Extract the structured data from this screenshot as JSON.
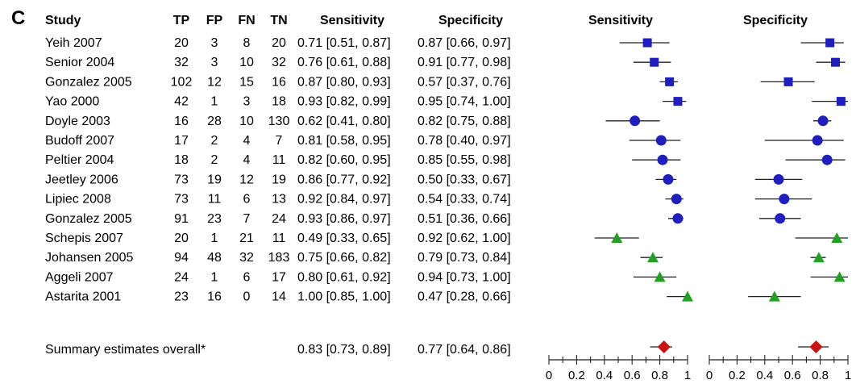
{
  "panel_label": "C",
  "headers": {
    "study": "Study",
    "tp": "TP",
    "fp": "FP",
    "fn": "FN",
    "tn": "TN",
    "sensitivity": "Sensitivity",
    "specificity": "Specificity",
    "plot_sensitivity": "Sensitivity",
    "plot_specificity": "Specificity"
  },
  "summary": {
    "label": "Summary estimates overall*",
    "sensitivity_text": "0.83 [0.73, 0.89]",
    "specificity_text": "0.77 [0.64, 0.86]",
    "sens": 0.83,
    "sens_lo": 0.73,
    "sens_hi": 0.89,
    "spec": 0.77,
    "spec_lo": 0.64,
    "spec_hi": 0.86,
    "marker": "diamond",
    "color": "#cc1111"
  },
  "marker_colors": {
    "square": "#1f1fbf",
    "circle": "#1f1fbf",
    "triangle": "#22a022"
  },
  "chart_data": {
    "type": "forest",
    "xlim": [
      0,
      1
    ],
    "ticks": [
      "0",
      "0.2",
      "0.4",
      "0.6",
      "0.8",
      "1"
    ],
    "tick_values": [
      0,
      0.2,
      0.4,
      0.6,
      0.8,
      1
    ],
    "studies": [
      {
        "study": "Yeih 2007",
        "tp": 20,
        "fp": 3,
        "fn": 8,
        "tn": 20,
        "sens": 0.71,
        "sens_lo": 0.51,
        "sens_hi": 0.87,
        "spec": 0.87,
        "spec_lo": 0.66,
        "spec_hi": 0.97,
        "sens_text": "0.71 [0.51, 0.87]",
        "spec_text": "0.87 [0.66, 0.97]",
        "marker": "square"
      },
      {
        "study": "Senior 2004",
        "tp": 32,
        "fp": 3,
        "fn": 10,
        "tn": 32,
        "sens": 0.76,
        "sens_lo": 0.61,
        "sens_hi": 0.88,
        "spec": 0.91,
        "spec_lo": 0.77,
        "spec_hi": 0.98,
        "sens_text": "0.76 [0.61, 0.88]",
        "spec_text": "0.91 [0.77, 0.98]",
        "marker": "square"
      },
      {
        "study": "Gonzalez 2005",
        "tp": 102,
        "fp": 12,
        "fn": 15,
        "tn": 16,
        "sens": 0.87,
        "sens_lo": 0.8,
        "sens_hi": 0.93,
        "spec": 0.57,
        "spec_lo": 0.37,
        "spec_hi": 0.76,
        "sens_text": "0.87 [0.80, 0.93]",
        "spec_text": "0.57 [0.37, 0.76]",
        "marker": "square"
      },
      {
        "study": "Yao 2000",
        "tp": 42,
        "fp": 1,
        "fn": 3,
        "tn": 18,
        "sens": 0.93,
        "sens_lo": 0.82,
        "sens_hi": 0.99,
        "spec": 0.95,
        "spec_lo": 0.74,
        "spec_hi": 1.0,
        "sens_text": "0.93 [0.82, 0.99]",
        "spec_text": "0.95 [0.74, 1.00]",
        "marker": "square"
      },
      {
        "study": "Doyle 2003",
        "tp": 16,
        "fp": 28,
        "fn": 10,
        "tn": 130,
        "sens": 0.62,
        "sens_lo": 0.41,
        "sens_hi": 0.8,
        "spec": 0.82,
        "spec_lo": 0.75,
        "spec_hi": 0.88,
        "sens_text": "0.62 [0.41, 0.80]",
        "spec_text": "0.82 [0.75, 0.88]",
        "marker": "circle"
      },
      {
        "study": "Budoff 2007",
        "tp": 17,
        "fp": 2,
        "fn": 4,
        "tn": 7,
        "sens": 0.81,
        "sens_lo": 0.58,
        "sens_hi": 0.95,
        "spec": 0.78,
        "spec_lo": 0.4,
        "spec_hi": 0.97,
        "sens_text": "0.81 [0.58, 0.95]",
        "spec_text": "0.78 [0.40, 0.97]",
        "marker": "circle"
      },
      {
        "study": "Peltier 2004",
        "tp": 18,
        "fp": 2,
        "fn": 4,
        "tn": 11,
        "sens": 0.82,
        "sens_lo": 0.6,
        "sens_hi": 0.95,
        "spec": 0.85,
        "spec_lo": 0.55,
        "spec_hi": 0.98,
        "sens_text": "0.82 [0.60, 0.95]",
        "spec_text": "0.85 [0.55, 0.98]",
        "marker": "circle"
      },
      {
        "study": "Jeetley 2006",
        "tp": 73,
        "fp": 19,
        "fn": 12,
        "tn": 19,
        "sens": 0.86,
        "sens_lo": 0.77,
        "sens_hi": 0.92,
        "spec": 0.5,
        "spec_lo": 0.33,
        "spec_hi": 0.67,
        "sens_text": "0.86 [0.77, 0.92]",
        "spec_text": "0.50 [0.33, 0.67]",
        "marker": "circle"
      },
      {
        "study": "Lipiec 2008",
        "tp": 73,
        "fp": 11,
        "fn": 6,
        "tn": 13,
        "sens": 0.92,
        "sens_lo": 0.84,
        "sens_hi": 0.97,
        "spec": 0.54,
        "spec_lo": 0.33,
        "spec_hi": 0.74,
        "sens_text": "0.92 [0.84, 0.97]",
        "spec_text": "0.54 [0.33, 0.74]",
        "marker": "circle"
      },
      {
        "study": "Gonzalez 2005",
        "tp": 91,
        "fp": 23,
        "fn": 7,
        "tn": 24,
        "sens": 0.93,
        "sens_lo": 0.86,
        "sens_hi": 0.97,
        "spec": 0.51,
        "spec_lo": 0.36,
        "spec_hi": 0.66,
        "sens_text": "0.93 [0.86, 0.97]",
        "spec_text": "0.51 [0.36, 0.66]",
        "marker": "circle"
      },
      {
        "study": "Schepis 2007",
        "tp": 20,
        "fp": 1,
        "fn": 21,
        "tn": 11,
        "sens": 0.49,
        "sens_lo": 0.33,
        "sens_hi": 0.65,
        "spec": 0.92,
        "spec_lo": 0.62,
        "spec_hi": 1.0,
        "sens_text": "0.49 [0.33, 0.65]",
        "spec_text": "0.92 [0.62, 1.00]",
        "marker": "triangle"
      },
      {
        "study": "Johansen 2005",
        "tp": 94,
        "fp": 48,
        "fn": 32,
        "tn": 183,
        "sens": 0.75,
        "sens_lo": 0.66,
        "sens_hi": 0.82,
        "spec": 0.79,
        "spec_lo": 0.73,
        "spec_hi": 0.84,
        "sens_text": "0.75 [0.66, 0.82]",
        "spec_text": "0.79 [0.73, 0.84]",
        "marker": "triangle"
      },
      {
        "study": "Aggeli 2007",
        "tp": 24,
        "fp": 1,
        "fn": 6,
        "tn": 17,
        "sens": 0.8,
        "sens_lo": 0.61,
        "sens_hi": 0.92,
        "spec": 0.94,
        "spec_lo": 0.73,
        "spec_hi": 1.0,
        "sens_text": "0.80 [0.61, 0.92]",
        "spec_text": "0.94 [0.73, 1.00]",
        "marker": "triangle"
      },
      {
        "study": "Astarita 2001",
        "tp": 23,
        "fp": 16,
        "fn": 0,
        "tn": 14,
        "sens": 1.0,
        "sens_lo": 0.85,
        "sens_hi": 1.0,
        "spec": 0.47,
        "spec_lo": 0.28,
        "spec_hi": 0.66,
        "sens_text": "1.00 [0.85, 1.00]",
        "spec_text": "0.47 [0.28, 0.66]",
        "marker": "triangle"
      }
    ]
  }
}
